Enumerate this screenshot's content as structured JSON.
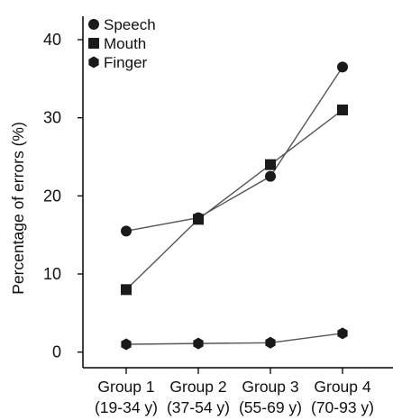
{
  "chart_data": {
    "type": "line",
    "title": "",
    "xlabel": "",
    "ylabel": "Percentage of errors (%)",
    "categories": [
      {
        "name": "Group 1",
        "range": "(19-34 y)"
      },
      {
        "name": "Group 2",
        "range": "(37-54 y)"
      },
      {
        "name": "Group 3",
        "range": "(55-69 y)"
      },
      {
        "name": "Group 4",
        "range": "(70-93 y)"
      }
    ],
    "y_ticks": [
      "0",
      "10",
      "20",
      "30",
      "40"
    ],
    "ylim": [
      -2,
      43
    ],
    "grid": false,
    "legend_position": "top-left",
    "series": [
      {
        "name": "Speech",
        "marker": "circle",
        "values": [
          15.5,
          17.2,
          22.5,
          36.5
        ]
      },
      {
        "name": "Mouth",
        "marker": "square",
        "values": [
          8.0,
          17.0,
          24.0,
          31.0
        ]
      },
      {
        "name": "Finger",
        "marker": "hexagon",
        "values": [
          1.0,
          1.1,
          1.2,
          2.4
        ]
      }
    ],
    "colors": {
      "line": "#555555",
      "marker": "#1a1a1a",
      "axis": "#000000"
    }
  }
}
